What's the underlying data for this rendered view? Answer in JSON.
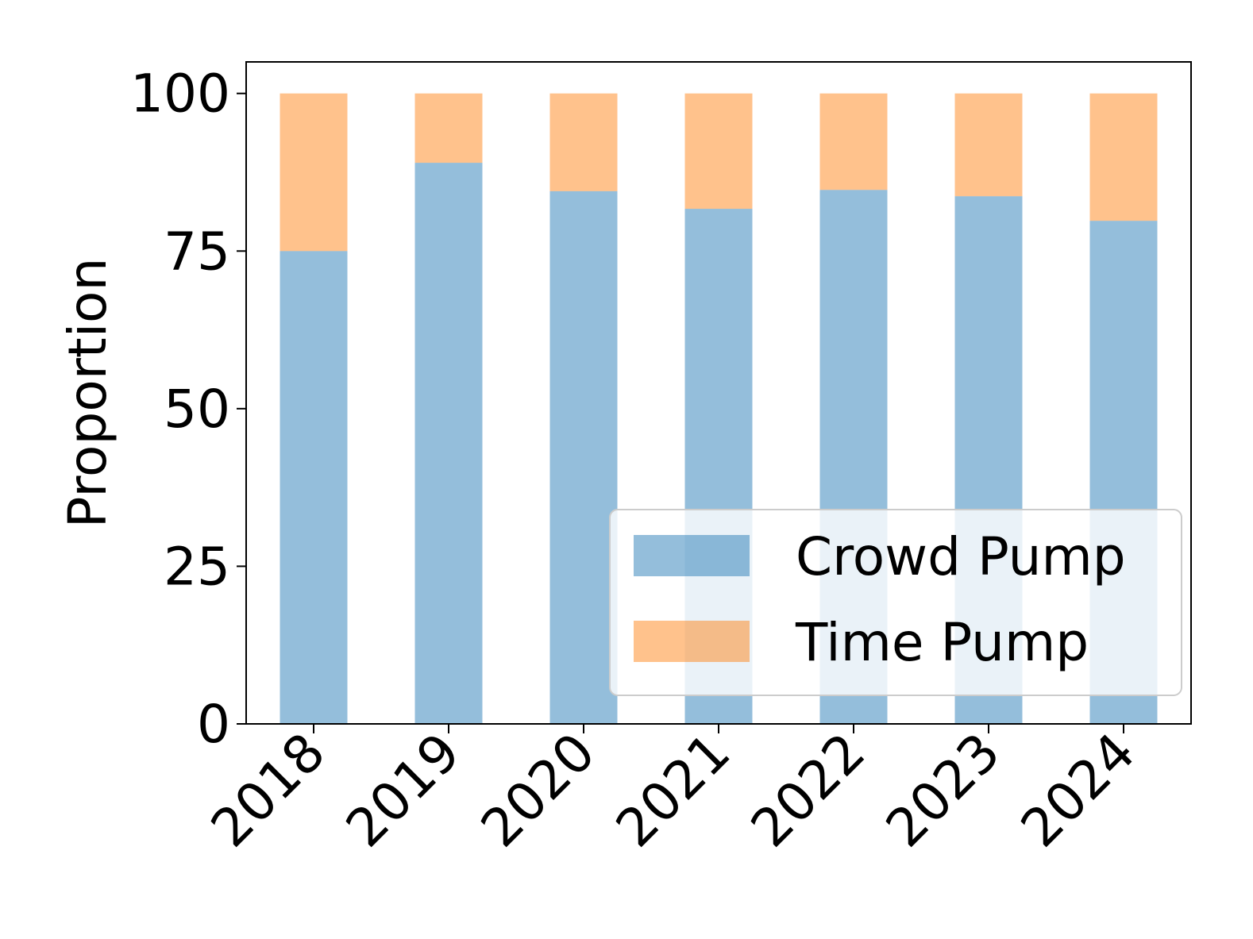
{
  "chart_data": {
    "type": "bar",
    "stacked": true,
    "categories": [
      "2018",
      "2019",
      "2020",
      "2021",
      "2022",
      "2023",
      "2024"
    ],
    "series": [
      {
        "name": "Crowd Pump",
        "values": [
          75,
          89,
          84.5,
          81.7,
          84.7,
          83.7,
          79.8
        ],
        "color": "#1f77b4"
      },
      {
        "name": "Time Pump",
        "values": [
          25,
          11,
          15.5,
          18.3,
          15.3,
          16.3,
          20.2
        ],
        "color": "#ff7f0e"
      }
    ],
    "bar_alpha": 0.48,
    "title": "",
    "xlabel": "",
    "ylabel": "Proportion",
    "ylim": [
      0,
      105
    ],
    "yticks": [
      0,
      25,
      50,
      75,
      100
    ],
    "xtick_rotation": 45,
    "grid": false,
    "legend": {
      "position": "lower-right"
    }
  }
}
